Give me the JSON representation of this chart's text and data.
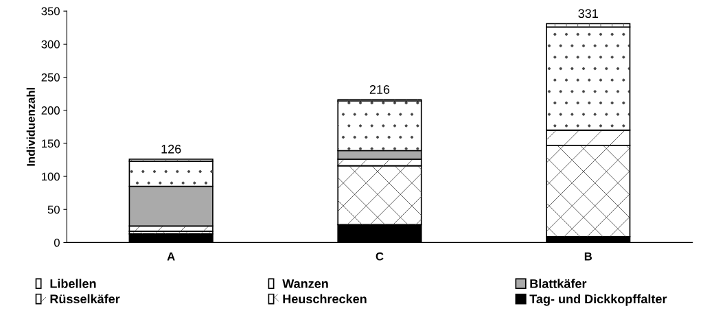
{
  "chart_data": {
    "type": "bar",
    "stacked": true,
    "ylabel": "Individuenzahl",
    "categories": [
      "A",
      "C",
      "B"
    ],
    "series": [
      {
        "name": "Tag- und Dickkopffalter",
        "color": "#000000",
        "values": [
          13,
          27,
          9
        ]
      },
      {
        "name": "Heuschrecken",
        "color": "#ffffff",
        "values": [
          4,
          89,
          138
        ]
      },
      {
        "name": "Rüsselkäfer",
        "color": "#ffffff",
        "values": [
          8,
          10,
          23
        ]
      },
      {
        "name": "Blattkäfer",
        "color": "#aaaaaa",
        "values": [
          60,
          13,
          0
        ]
      },
      {
        "name": "Wanzen",
        "color": "#ffffff",
        "values": [
          38,
          75,
          156
        ]
      },
      {
        "name": "Libellen",
        "color": "#ffffff",
        "values": [
          3,
          2,
          5
        ]
      }
    ],
    "totals": [
      "126",
      "216",
      "331"
    ],
    "ylim": [
      0,
      350
    ],
    "yticks": [
      0,
      50,
      100,
      150,
      200,
      250,
      300,
      350
    ],
    "grid": false,
    "legend": "bottom"
  }
}
